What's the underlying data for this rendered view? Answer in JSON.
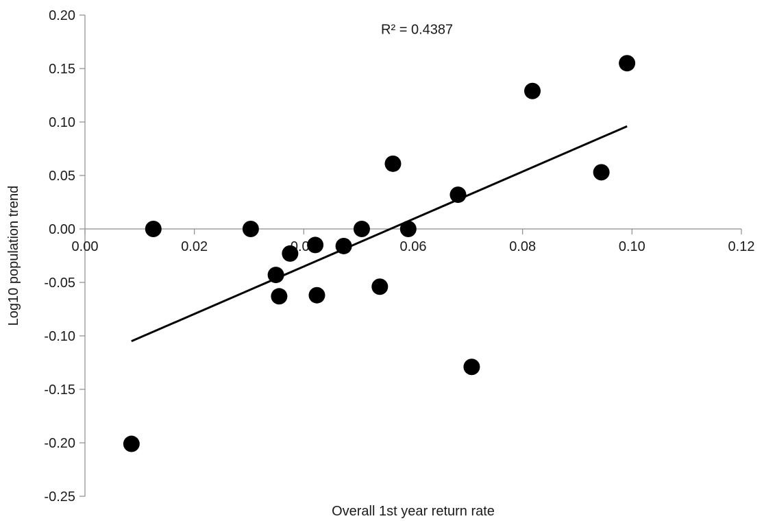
{
  "chart_data": {
    "type": "scatter",
    "title": "",
    "xlabel": "Overall 1st year return rate",
    "ylabel": "Log10 population trend",
    "xlim": [
      0.0,
      0.12
    ],
    "ylim": [
      -0.25,
      0.2
    ],
    "x_ticks": [
      0.0,
      0.02,
      0.04,
      0.06,
      0.08,
      0.1,
      0.12
    ],
    "x_tick_labels": [
      "0.00",
      "0.02",
      "0.04",
      "0.06",
      "0.08",
      "0.10",
      "0.12"
    ],
    "y_ticks": [
      0.2,
      0.15,
      0.1,
      0.05,
      0.0,
      -0.05,
      -0.1,
      -0.15,
      -0.2,
      -0.25
    ],
    "y_tick_labels": [
      "0.20",
      "0.15",
      "0.10",
      "0.05",
      "0.00",
      "-0.05",
      "-0.10",
      "-0.15",
      "-0.20",
      "-0.25"
    ],
    "grid": false,
    "series": [
      {
        "marker_color": "#000000",
        "points": [
          {
            "x": 0.0085,
            "y": -0.201
          },
          {
            "x": 0.0125,
            "y": 0.0
          },
          {
            "x": 0.0303,
            "y": 0.0
          },
          {
            "x": 0.0349,
            "y": -0.043
          },
          {
            "x": 0.0355,
            "y": -0.063
          },
          {
            "x": 0.0375,
            "y": -0.023
          },
          {
            "x": 0.0421,
            "y": -0.015
          },
          {
            "x": 0.0424,
            "y": -0.062
          },
          {
            "x": 0.0473,
            "y": -0.016
          },
          {
            "x": 0.0506,
            "y": 0.0
          },
          {
            "x": 0.0539,
            "y": -0.054
          },
          {
            "x": 0.0563,
            "y": 0.061
          },
          {
            "x": 0.0591,
            "y": 0.0
          },
          {
            "x": 0.0682,
            "y": 0.032
          },
          {
            "x": 0.0707,
            "y": -0.129
          },
          {
            "x": 0.0818,
            "y": 0.129
          },
          {
            "x": 0.0944,
            "y": 0.053
          },
          {
            "x": 0.0991,
            "y": 0.155
          }
        ]
      }
    ],
    "trendline": {
      "type": "linear",
      "x_start": 0.0085,
      "x_end": 0.0991,
      "y_start": -0.105,
      "y_end": 0.096,
      "color": "#000000"
    },
    "annotations": [
      {
        "text": "R² = 0.4387",
        "x": 0.0607,
        "y": 0.187
      }
    ]
  }
}
